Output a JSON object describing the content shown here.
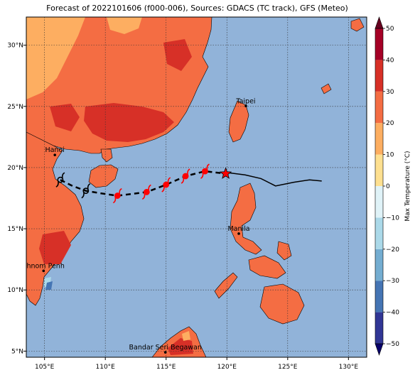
{
  "title": "Forecast of 2022101606 (f000-006), Sources: GDACS (TC track), GFS (Meteo)",
  "map": {
    "lon_range": [
      103.5,
      131.5
    ],
    "lat_range": [
      4.5,
      32.3
    ],
    "lon_ticks": [
      {
        "value": 105,
        "label": "105°E"
      },
      {
        "value": 110,
        "label": "110°E"
      },
      {
        "value": 115,
        "label": "115°E"
      },
      {
        "value": 120,
        "label": "120°E"
      },
      {
        "value": 125,
        "label": "125°E"
      },
      {
        "value": 130,
        "label": "130°E"
      }
    ],
    "lat_ticks": [
      {
        "value": 5,
        "label": "5°N"
      },
      {
        "value": 10,
        "label": "10°N"
      },
      {
        "value": 15,
        "label": "15°N"
      },
      {
        "value": 20,
        "label": "20°N"
      },
      {
        "value": 25,
        "label": "25°N"
      },
      {
        "value": 30,
        "label": "30°N"
      }
    ],
    "grid": "dotted",
    "ocean_color": "#91b3d9"
  },
  "cities": [
    {
      "name": "Hanoi",
      "lon": 105.85,
      "lat": 21.03
    },
    {
      "name": "Taipei",
      "lon": 121.56,
      "lat": 25.03
    },
    {
      "name": "Manila",
      "lon": 120.98,
      "lat": 14.6
    },
    {
      "name": "Phnom Penh",
      "lon": 104.92,
      "lat": 11.56
    },
    {
      "name": "Bandar Seri Begawan",
      "lon": 114.94,
      "lat": 4.9
    }
  ],
  "track": {
    "forecast": [
      [
        106.3,
        19.0
      ],
      [
        107.3,
        18.5
      ],
      [
        108.4,
        18.1
      ],
      [
        109.6,
        17.9
      ],
      [
        111.0,
        17.7
      ],
      [
        113.4,
        18.0
      ],
      [
        115.0,
        18.6
      ],
      [
        116.6,
        19.3
      ],
      [
        118.2,
        19.7
      ],
      [
        119.9,
        19.5
      ]
    ],
    "past": [
      [
        119.9,
        19.6
      ],
      [
        121.5,
        19.4
      ],
      [
        122.8,
        19.1
      ],
      [
        124.0,
        18.5
      ],
      [
        125.5,
        18.8
      ],
      [
        126.8,
        19.0
      ],
      [
        127.8,
        18.9
      ]
    ],
    "current_position": [
      119.9,
      19.5
    ],
    "storm_symbols": [
      {
        "lon": 111.0,
        "lat": 17.7,
        "color": "#ff0000"
      },
      {
        "lon": 113.4,
        "lat": 18.0,
        "color": "#ff0000"
      },
      {
        "lon": 115.0,
        "lat": 18.6,
        "color": "#ff0000"
      },
      {
        "lon": 116.6,
        "lat": 19.3,
        "color": "#ff0000"
      },
      {
        "lon": 118.2,
        "lat": 19.7,
        "color": "#ff0000"
      },
      {
        "lon": 108.4,
        "lat": 18.1,
        "color": "#000000"
      },
      {
        "lon": 106.3,
        "lat": 19.0,
        "color": "#000000"
      }
    ]
  },
  "colorbar": {
    "label": "Max Temperature (°C)",
    "range": [
      -50,
      50
    ],
    "ticks": [
      {
        "value": 50,
        "label": "50"
      },
      {
        "value": 40,
        "label": "40"
      },
      {
        "value": 30,
        "label": "30"
      },
      {
        "value": 20,
        "label": "20"
      },
      {
        "value": 10,
        "label": "10"
      },
      {
        "value": 0,
        "label": "0"
      },
      {
        "value": -10,
        "label": "−10"
      },
      {
        "value": -20,
        "label": "−20"
      },
      {
        "value": -30,
        "label": "−30"
      },
      {
        "value": -40,
        "label": "−40"
      },
      {
        "value": -50,
        "label": "−50"
      }
    ],
    "colors": [
      "#313695",
      "#4575b4",
      "#74add1",
      "#abd9e9",
      "#e0f3f8",
      "#fee090",
      "#fdae61",
      "#f46d43",
      "#d73027",
      "#a50026"
    ]
  },
  "colors": {
    "land_hot": "#f46d43",
    "land_hotter": "#d73027",
    "land_warm": "#fdae61",
    "forecast_track": "#000000",
    "storm_marker": "#ff0000"
  }
}
